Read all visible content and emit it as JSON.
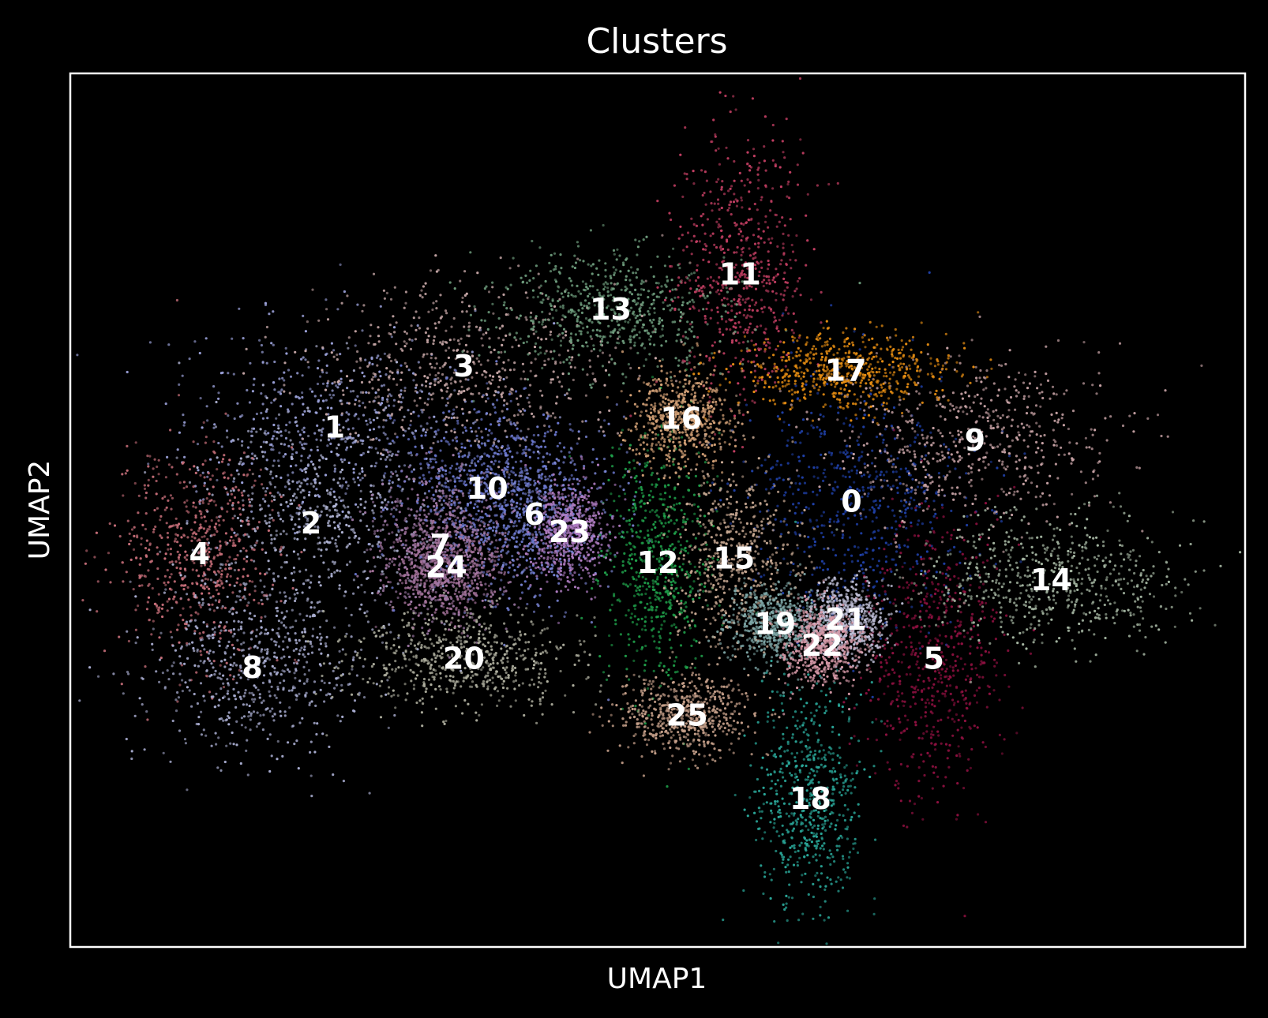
{
  "chart_data": {
    "type": "scatter",
    "title": "Clusters",
    "xlabel": "UMAP1",
    "ylabel": "UMAP2",
    "background": "#000000",
    "frame_color": "#ffffff",
    "legend": "on data",
    "xlim": [
      0,
      100
    ],
    "ylim": [
      0,
      100
    ],
    "clusters": [
      {
        "id": "0",
        "x": 66.5,
        "y": 51.0,
        "rx": 9,
        "ry": 13,
        "color": "#1f40a8"
      },
      {
        "id": "1",
        "x": 22.5,
        "y": 59.5,
        "rx": 12,
        "ry": 10,
        "color": "#9aa0d8"
      },
      {
        "id": "2",
        "x": 20.5,
        "y": 48.5,
        "rx": 9,
        "ry": 12,
        "color": "#b0b4d4"
      },
      {
        "id": "3",
        "x": 33.5,
        "y": 66.5,
        "rx": 12,
        "ry": 9,
        "color": "#c9a9a9"
      },
      {
        "id": "4",
        "x": 11.0,
        "y": 45.0,
        "rx": 6,
        "ry": 11,
        "color": "#c86f7a"
      },
      {
        "id": "5",
        "x": 73.5,
        "y": 33.0,
        "rx": 5.5,
        "ry": 14,
        "color": "#8e1040"
      },
      {
        "id": "6",
        "x": 39.5,
        "y": 49.5,
        "rx": 6,
        "ry": 9,
        "color": "#7b86d6"
      },
      {
        "id": "7",
        "x": 31.5,
        "y": 46.0,
        "rx": 5,
        "ry": 8,
        "color": "#a07aa8"
      },
      {
        "id": "8",
        "x": 15.5,
        "y": 32.0,
        "rx": 9,
        "ry": 9,
        "color": "#a8acd0"
      },
      {
        "id": "9",
        "x": 77.0,
        "y": 58.0,
        "rx": 11,
        "ry": 9,
        "color": "#c8a3a6"
      },
      {
        "id": "10",
        "x": 35.5,
        "y": 52.5,
        "rx": 7,
        "ry": 9,
        "color": "#6b78cf"
      },
      {
        "id": "11",
        "x": 57.0,
        "y": 77.0,
        "rx": 5,
        "ry": 14,
        "color": "#c23e62"
      },
      {
        "id": "12",
        "x": 50.0,
        "y": 44.0,
        "rx": 4,
        "ry": 13,
        "color": "#1fa04a"
      },
      {
        "id": "13",
        "x": 46.0,
        "y": 73.0,
        "rx": 9,
        "ry": 6,
        "color": "#6f9e7e"
      },
      {
        "id": "14",
        "x": 83.5,
        "y": 42.0,
        "rx": 10,
        "ry": 7,
        "color": "#a7b8a4"
      },
      {
        "id": "15",
        "x": 56.5,
        "y": 44.5,
        "rx": 5,
        "ry": 10,
        "color": "#c7a892"
      },
      {
        "id": "16",
        "x": 52.0,
        "y": 60.5,
        "rx": 4,
        "ry": 5,
        "color": "#d6a378"
      },
      {
        "id": "17",
        "x": 66.0,
        "y": 66.0,
        "rx": 8,
        "ry": 4,
        "color": "#e88e12"
      },
      {
        "id": "18",
        "x": 63.0,
        "y": 17.0,
        "rx": 4,
        "ry": 12,
        "color": "#2aa89a"
      },
      {
        "id": "19",
        "x": 60.0,
        "y": 37.0,
        "rx": 3.5,
        "ry": 4,
        "color": "#7fa8a8"
      },
      {
        "id": "20",
        "x": 33.5,
        "y": 33.0,
        "rx": 9,
        "ry": 5,
        "color": "#b0b0a0"
      },
      {
        "id": "21",
        "x": 66.0,
        "y": 37.5,
        "rx": 3,
        "ry": 4,
        "color": "#c0c0d8"
      },
      {
        "id": "22",
        "x": 64.0,
        "y": 34.5,
        "rx": 3,
        "ry": 4,
        "color": "#d79aa8"
      },
      {
        "id": "23",
        "x": 42.5,
        "y": 47.5,
        "rx": 3,
        "ry": 5,
        "color": "#b07dc2"
      },
      {
        "id": "24",
        "x": 32.0,
        "y": 43.5,
        "rx": 4,
        "ry": 5,
        "color": "#a4729a"
      },
      {
        "id": "25",
        "x": 52.5,
        "y": 26.5,
        "rx": 5,
        "ry": 4,
        "color": "#c6a08a"
      }
    ]
  }
}
